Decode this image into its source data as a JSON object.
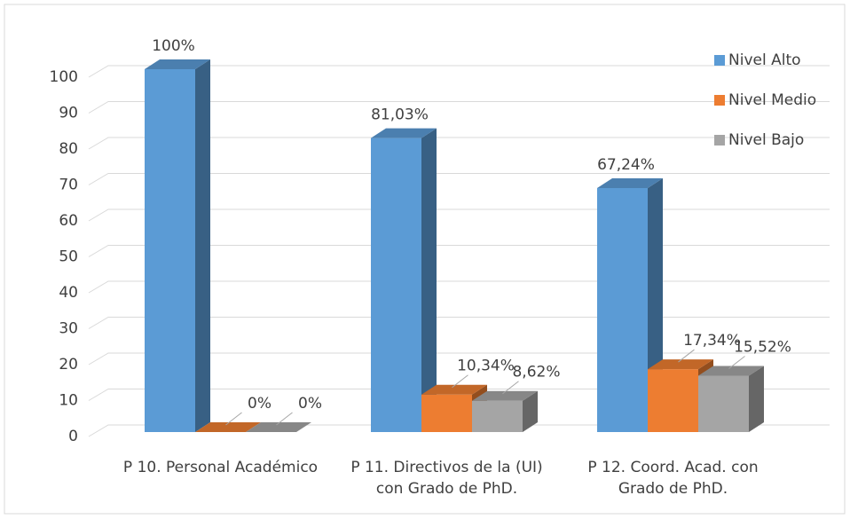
{
  "chart_data": {
    "type": "bar3d",
    "categories": [
      "P 10. Personal Académico",
      "P 11. Directivos de la (UI) con Grado de PhD.",
      "P 12. Coord. Acad. con Grado de PhD."
    ],
    "series": [
      {
        "name": "Nivel Alto",
        "color": "#5b9bd5",
        "values": [
          100,
          81.03,
          67.24
        ],
        "value_labels": [
          "100%",
          "81,03%",
          "67,24%"
        ]
      },
      {
        "name": "Nivel Medio",
        "color": "#ed7d31",
        "values": [
          0,
          10.34,
          17.34
        ],
        "value_labels": [
          "0%",
          "10,34%",
          "17,34%"
        ]
      },
      {
        "name": "Nivel Bajo",
        "color": "#a5a5a5",
        "values": [
          0,
          8.62,
          15.52
        ],
        "value_labels": [
          "0%",
          "8,62%",
          "15,52%"
        ]
      }
    ],
    "ylim": [
      0,
      100
    ],
    "yticks": [
      0,
      10,
      20,
      30,
      40,
      50,
      60,
      70,
      80,
      90,
      100
    ],
    "grid": true,
    "legend": "top-right"
  }
}
